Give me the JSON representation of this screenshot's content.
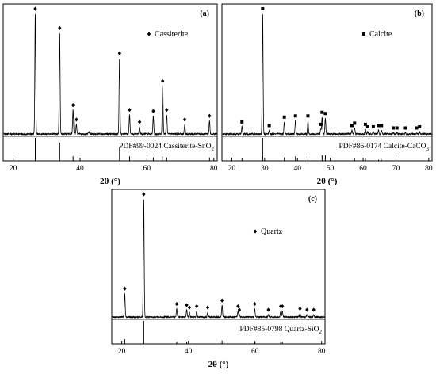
{
  "chart_data": [
    {
      "type": "line",
      "panel_label": "(a)",
      "xlabel": "2θ (°)",
      "xlim": [
        17,
        81
      ],
      "xticks": [
        20,
        40,
        60,
        80
      ],
      "legend": {
        "label": "Cassiterite",
        "marker": "diamond",
        "placement": "top-right"
      },
      "reference_label": "PDF#99-0024 Cassiterite-SnO",
      "reference_sub": "2",
      "peaks": [
        {
          "x": 26.6,
          "rel": 1.0,
          "marker": true
        },
        {
          "x": 33.9,
          "rel": 0.84,
          "marker": true
        },
        {
          "x": 37.9,
          "rel": 0.2,
          "marker": true
        },
        {
          "x": 38.9,
          "rel": 0.08,
          "marker": true
        },
        {
          "x": 42.6,
          "rel": 0.02,
          "marker": false
        },
        {
          "x": 51.8,
          "rel": 0.63,
          "marker": true
        },
        {
          "x": 54.8,
          "rel": 0.16,
          "marker": true
        },
        {
          "x": 57.8,
          "rel": 0.06,
          "marker": true
        },
        {
          "x": 61.9,
          "rel": 0.15,
          "marker": true
        },
        {
          "x": 64.7,
          "rel": 0.4,
          "marker": true
        },
        {
          "x": 65.9,
          "rel": 0.16,
          "marker": true
        },
        {
          "x": 71.3,
          "rel": 0.08,
          "marker": true
        },
        {
          "x": 78.7,
          "rel": 0.11,
          "marker": true
        }
      ],
      "reference_lines": [
        {
          "x": 26.6,
          "rel": 1.0
        },
        {
          "x": 33.9,
          "rel": 0.8
        },
        {
          "x": 37.9,
          "rel": 0.2
        },
        {
          "x": 51.8,
          "rel": 0.6
        },
        {
          "x": 54.8,
          "rel": 0.2
        },
        {
          "x": 61.9,
          "rel": 0.15
        },
        {
          "x": 64.7,
          "rel": 0.2
        },
        {
          "x": 65.9,
          "rel": 0.15
        },
        {
          "x": 78.7,
          "rel": 0.15
        }
      ]
    },
    {
      "type": "line",
      "panel_label": "(b)",
      "xlabel": "2θ (°)",
      "xlim": [
        17,
        81
      ],
      "xticks": [
        20,
        30,
        40,
        50,
        60,
        70,
        80
      ],
      "legend": {
        "label": "Calcite",
        "marker": "square",
        "placement": "top-right"
      },
      "reference_label": "PDF#86-0174 Calcite-CaCO",
      "reference_sub": "3",
      "peaks": [
        {
          "x": 23.1,
          "rel": 0.06,
          "marker": true
        },
        {
          "x": 29.4,
          "rel": 1.0,
          "marker": true
        },
        {
          "x": 31.4,
          "rel": 0.03,
          "marker": true
        },
        {
          "x": 36.0,
          "rel": 0.1,
          "marker": true
        },
        {
          "x": 39.4,
          "rel": 0.11,
          "marker": true
        },
        {
          "x": 43.2,
          "rel": 0.11,
          "marker": true
        },
        {
          "x": 47.1,
          "rel": 0.04,
          "marker": true
        },
        {
          "x": 47.5,
          "rel": 0.14,
          "marker": true
        },
        {
          "x": 48.5,
          "rel": 0.13,
          "marker": true
        },
        {
          "x": 56.6,
          "rel": 0.03,
          "marker": true
        },
        {
          "x": 57.4,
          "rel": 0.05,
          "marker": true
        },
        {
          "x": 60.7,
          "rel": 0.04,
          "marker": true
        },
        {
          "x": 61.4,
          "rel": 0.02,
          "marker": true
        },
        {
          "x": 63.1,
          "rel": 0.02,
          "marker": true
        },
        {
          "x": 64.7,
          "rel": 0.03,
          "marker": true
        },
        {
          "x": 65.6,
          "rel": 0.03,
          "marker": true
        },
        {
          "x": 69.2,
          "rel": 0.01,
          "marker": true
        },
        {
          "x": 70.3,
          "rel": 0.01,
          "marker": true
        },
        {
          "x": 72.9,
          "rel": 0.01,
          "marker": true
        },
        {
          "x": 76.3,
          "rel": 0.01,
          "marker": true
        },
        {
          "x": 77.2,
          "rel": 0.02,
          "marker": true
        }
      ],
      "reference_lines": [
        {
          "x": 23.1,
          "rel": 0.1
        },
        {
          "x": 29.4,
          "rel": 1.0
        },
        {
          "x": 36.0,
          "rel": 0.15
        },
        {
          "x": 39.4,
          "rel": 0.2
        },
        {
          "x": 43.2,
          "rel": 0.2
        },
        {
          "x": 47.5,
          "rel": 0.25
        },
        {
          "x": 48.5,
          "rel": 0.25
        },
        {
          "x": 57.4,
          "rel": 0.1
        },
        {
          "x": 60.7,
          "rel": 0.1
        },
        {
          "x": 64.7,
          "rel": 0.05
        },
        {
          "x": 65.6,
          "rel": 0.05
        }
      ]
    },
    {
      "type": "line",
      "panel_label": "(c)",
      "xlabel": "2θ (°)",
      "xlim": [
        17,
        81
      ],
      "xticks": [
        20,
        40,
        60,
        80
      ],
      "legend": {
        "label": "Quartz",
        "marker": "diamond",
        "placement": "top-right"
      },
      "reference_label": "PDF#85-0798 Quartz-SiO",
      "reference_sub": "2",
      "peaks": [
        {
          "x": 20.9,
          "rel": 0.2,
          "marker": true
        },
        {
          "x": 26.6,
          "rel": 1.0,
          "marker": true
        },
        {
          "x": 36.5,
          "rel": 0.07,
          "marker": true
        },
        {
          "x": 39.5,
          "rel": 0.06,
          "marker": true
        },
        {
          "x": 40.3,
          "rel": 0.04,
          "marker": true
        },
        {
          "x": 42.5,
          "rel": 0.05,
          "marker": true
        },
        {
          "x": 45.8,
          "rel": 0.04,
          "marker": true
        },
        {
          "x": 50.1,
          "rel": 0.1,
          "marker": true
        },
        {
          "x": 54.9,
          "rel": 0.05,
          "marker": true
        },
        {
          "x": 55.3,
          "rel": 0.02,
          "marker": true
        },
        {
          "x": 59.9,
          "rel": 0.07,
          "marker": true
        },
        {
          "x": 64.0,
          "rel": 0.02,
          "marker": true
        },
        {
          "x": 67.7,
          "rel": 0.05,
          "marker": true
        },
        {
          "x": 68.2,
          "rel": 0.05,
          "marker": true
        },
        {
          "x": 73.5,
          "rel": 0.03,
          "marker": true
        },
        {
          "x": 75.6,
          "rel": 0.02,
          "marker": true
        },
        {
          "x": 77.6,
          "rel": 0.02,
          "marker": true
        }
      ],
      "reference_lines": [
        {
          "x": 20.9,
          "rel": 0.2
        },
        {
          "x": 26.6,
          "rel": 1.0
        },
        {
          "x": 36.5,
          "rel": 0.1
        },
        {
          "x": 39.5,
          "rel": 0.1
        },
        {
          "x": 50.1,
          "rel": 0.15
        },
        {
          "x": 59.9,
          "rel": 0.1
        },
        {
          "x": 67.7,
          "rel": 0.1
        },
        {
          "x": 68.2,
          "rel": 0.1
        }
      ]
    }
  ]
}
